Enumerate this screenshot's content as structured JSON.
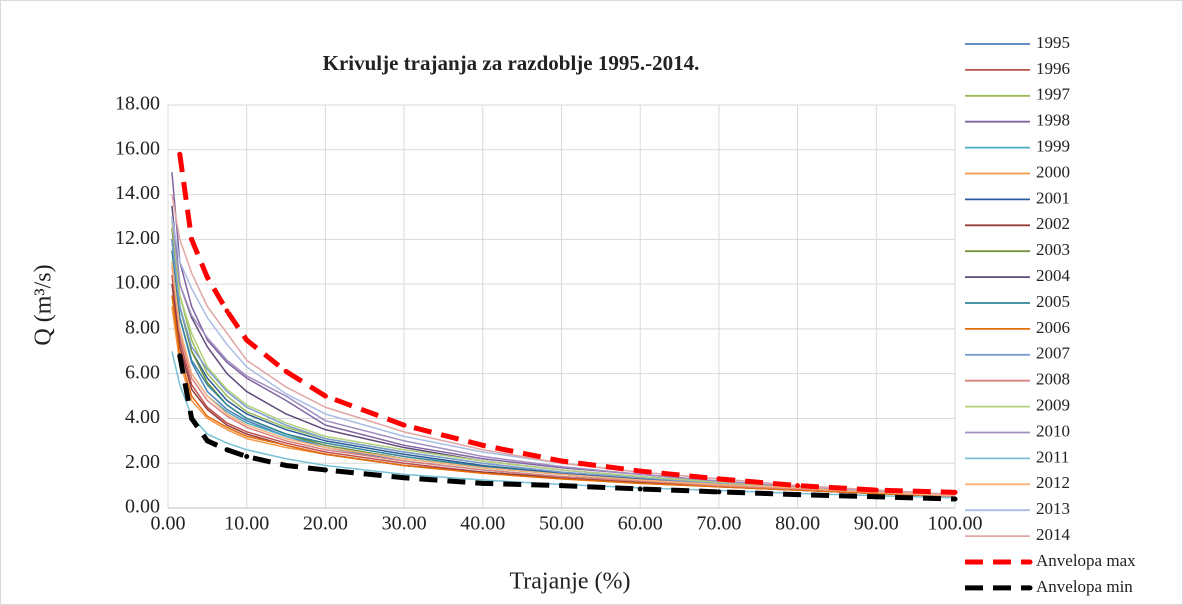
{
  "chart_data": {
    "type": "line",
    "title": "Krivulje trajanja za razdoblje 1995.-2014.",
    "x_label": "Trajanje (%)",
    "y_label": "Q (m³/s)",
    "x": [
      0.5,
      1.5,
      3,
      5,
      7.5,
      10,
      15,
      20,
      30,
      40,
      50,
      60,
      70,
      80,
      90,
      100
    ],
    "xlim": [
      0,
      100
    ],
    "xticks": [
      {
        "value": 0,
        "label": "0.00"
      },
      {
        "value": 10,
        "label": "10.00"
      },
      {
        "value": 20,
        "label": "20.00"
      },
      {
        "value": 30,
        "label": "30.00"
      },
      {
        "value": 40,
        "label": "40.00"
      },
      {
        "value": 50,
        "label": "50.00"
      },
      {
        "value": 60,
        "label": "60.00"
      },
      {
        "value": 70,
        "label": "70.00"
      },
      {
        "value": 80,
        "label": "80.00"
      },
      {
        "value": 90,
        "label": "90.00"
      },
      {
        "value": 100,
        "label": "100.00"
      }
    ],
    "ylim": [
      0,
      18
    ],
    "yticks": [
      {
        "value": 0,
        "label": "0.00"
      },
      {
        "value": 2,
        "label": "2.00"
      },
      {
        "value": 4,
        "label": "4.00"
      },
      {
        "value": 6,
        "label": "6.00"
      },
      {
        "value": 8,
        "label": "8.00"
      },
      {
        "value": 10,
        "label": "10.00"
      },
      {
        "value": 12,
        "label": "12.00"
      },
      {
        "value": 14,
        "label": "14.00"
      },
      {
        "value": 16,
        "label": "16.00"
      },
      {
        "value": 18,
        "label": "18.00"
      }
    ],
    "grid": true,
    "legend": "right",
    "series": [
      {
        "name": "1995",
        "color": "#4f81bd",
        "values": [
          12,
          8.5,
          6.5,
          5.2,
          4.4,
          3.9,
          3.2,
          2.7,
          2.1,
          1.7,
          1.4,
          1.2,
          1.0,
          0.85,
          0.7,
          0.5
        ]
      },
      {
        "name": "1996",
        "color": "#c0504d",
        "values": [
          10.4,
          7.5,
          5.5,
          4.5,
          3.8,
          3.4,
          2.9,
          2.5,
          2.0,
          1.6,
          1.35,
          1.15,
          0.95,
          0.8,
          0.65,
          0.5
        ]
      },
      {
        "name": "1997",
        "color": "#9bbb59",
        "values": [
          13,
          9.5,
          7.5,
          6,
          5,
          4.3,
          3.6,
          3.1,
          2.5,
          2.0,
          1.6,
          1.3,
          1.1,
          0.9,
          0.7,
          0.55
        ]
      },
      {
        "name": "1998",
        "color": "#8064a2",
        "values": [
          15,
          11,
          9,
          7.5,
          6.5,
          5.8,
          4.8,
          3.7,
          2.8,
          2.2,
          1.8,
          1.5,
          1.2,
          0.95,
          0.75,
          0.6
        ]
      },
      {
        "name": "1999",
        "color": "#4bacc6",
        "values": [
          11,
          8,
          6,
          5,
          4.3,
          3.8,
          3.2,
          2.8,
          2.2,
          1.8,
          1.5,
          1.25,
          1.05,
          0.9,
          0.7,
          0.55
        ]
      },
      {
        "name": "2000",
        "color": "#f79646",
        "values": [
          9,
          6.5,
          4.8,
          4.0,
          3.5,
          3.1,
          2.7,
          2.4,
          1.9,
          1.55,
          1.3,
          1.1,
          0.95,
          0.8,
          0.65,
          0.5
        ]
      },
      {
        "name": "2001",
        "color": "#2c5d9a",
        "values": [
          12,
          9,
          7,
          5.8,
          4.8,
          4.2,
          3.5,
          3.0,
          2.4,
          1.9,
          1.55,
          1.3,
          1.1,
          0.9,
          0.75,
          0.55
        ]
      },
      {
        "name": "2002",
        "color": "#963c3a",
        "values": [
          10,
          7.2,
          5.3,
          4.4,
          3.7,
          3.3,
          2.8,
          2.4,
          1.9,
          1.6,
          1.35,
          1.15,
          0.95,
          0.8,
          0.65,
          0.5
        ]
      },
      {
        "name": "2003",
        "color": "#76923c",
        "values": [
          12.5,
          9,
          7,
          5.6,
          4.6,
          4.0,
          3.3,
          2.8,
          2.2,
          1.8,
          1.5,
          1.25,
          1.05,
          0.9,
          0.7,
          0.55
        ]
      },
      {
        "name": "2004",
        "color": "#5f497a",
        "values": [
          13.5,
          10,
          8.5,
          7.2,
          6.0,
          5.2,
          4.2,
          3.5,
          2.7,
          2.1,
          1.7,
          1.4,
          1.15,
          0.95,
          0.75,
          0.6
        ]
      },
      {
        "name": "2005",
        "color": "#31859c",
        "values": [
          11.5,
          8.5,
          6.6,
          5.5,
          4.6,
          4.0,
          3.3,
          2.9,
          2.3,
          1.85,
          1.5,
          1.25,
          1.05,
          0.9,
          0.7,
          0.55
        ]
      },
      {
        "name": "2006",
        "color": "#e36c09",
        "values": [
          9.5,
          6.8,
          5,
          4.1,
          3.6,
          3.2,
          2.8,
          2.4,
          1.9,
          1.55,
          1.3,
          1.1,
          0.95,
          0.8,
          0.65,
          0.5
        ]
      },
      {
        "name": "2007",
        "color": "#7a9cd0",
        "values": [
          12,
          9,
          7.2,
          6.2,
          5.2,
          4.5,
          3.7,
          3.1,
          2.5,
          2.0,
          1.6,
          1.35,
          1.1,
          0.9,
          0.75,
          0.55
        ]
      },
      {
        "name": "2008",
        "color": "#d9827f",
        "values": [
          10.8,
          7.8,
          5.8,
          4.8,
          4.1,
          3.6,
          3.0,
          2.6,
          2.1,
          1.7,
          1.4,
          1.2,
          1.0,
          0.85,
          0.7,
          0.5
        ]
      },
      {
        "name": "2009",
        "color": "#b3d07a",
        "values": [
          12.8,
          9.5,
          7.8,
          6.3,
          5.3,
          4.6,
          3.8,
          3.2,
          2.6,
          2.1,
          1.7,
          1.4,
          1.15,
          0.95,
          0.75,
          0.6
        ]
      },
      {
        "name": "2010",
        "color": "#a18fc0",
        "values": [
          13,
          10,
          8.6,
          7.6,
          6.6,
          5.9,
          5.0,
          3.9,
          3.0,
          2.3,
          1.85,
          1.5,
          1.2,
          0.95,
          0.75,
          0.6
        ]
      },
      {
        "name": "2011",
        "color": "#78c1d6",
        "values": [
          7,
          5.5,
          4.1,
          3.3,
          2.9,
          2.6,
          2.2,
          1.9,
          1.5,
          1.25,
          1.05,
          0.9,
          0.78,
          0.65,
          0.55,
          0.45
        ]
      },
      {
        "name": "2012",
        "color": "#f9b27a",
        "values": [
          11,
          8,
          6,
          5,
          4.2,
          3.7,
          3.1,
          2.7,
          2.2,
          1.8,
          1.5,
          1.25,
          1.05,
          0.9,
          0.7,
          0.55
        ]
      },
      {
        "name": "2013",
        "color": "#a9bde4",
        "values": [
          13,
          11,
          9.8,
          8.5,
          7.3,
          6.3,
          5.1,
          4.2,
          3.2,
          2.5,
          2.0,
          1.6,
          1.3,
          1.0,
          0.8,
          0.6
        ]
      },
      {
        "name": "2014",
        "color": "#e0a6a4",
        "values": [
          14,
          12,
          10.5,
          9,
          7.8,
          6.6,
          5.4,
          4.5,
          3.4,
          2.6,
          2.0,
          1.6,
          1.3,
          1.0,
          0.8,
          0.6
        ]
      },
      {
        "name": "Anvelopa max",
        "color": "#ff0000",
        "line_style": "dashed",
        "markers": true,
        "values": [
          null,
          15.8,
          12,
          10.3,
          8.8,
          7.5,
          6.1,
          5.0,
          3.7,
          2.8,
          2.1,
          1.65,
          1.3,
          1.0,
          0.8,
          0.7
        ]
      },
      {
        "name": "Anvelopa min",
        "color": "#000000",
        "line_style": "dashed",
        "markers": true,
        "values": [
          null,
          6.8,
          4.0,
          3.0,
          2.6,
          2.3,
          1.9,
          1.7,
          1.35,
          1.1,
          1.0,
          0.85,
          0.72,
          0.6,
          0.5,
          0.4
        ]
      }
    ]
  }
}
